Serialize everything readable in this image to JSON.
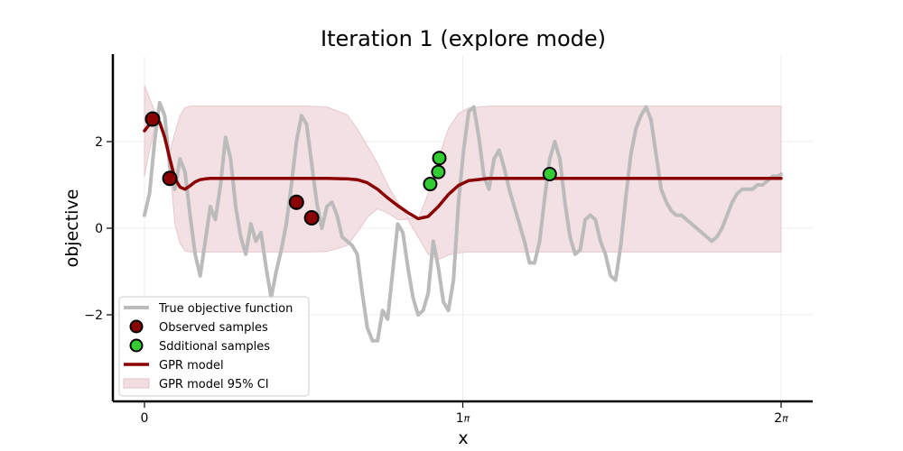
{
  "chart_data": {
    "type": "line",
    "title": "Iteration 1 (explore mode)",
    "xlabel": "x",
    "ylabel": "objective",
    "xlim": [
      -0.1,
      6.6
    ],
    "ylim": [
      -4.0,
      4.0
    ],
    "x_ticks": [
      {
        "value": 0,
        "label": "0",
        "pi": ""
      },
      {
        "value": 3.14159,
        "label": "1",
        "pi": "π"
      },
      {
        "value": 6.28319,
        "label": "2",
        "pi": "π"
      }
    ],
    "y_ticks": [
      {
        "value": 2,
        "label": "2"
      },
      {
        "value": 0,
        "label": "0"
      },
      {
        "value": -2,
        "label": "−2"
      }
    ],
    "grid": true,
    "legend_position": "lower left",
    "legend": [
      {
        "label": "True objective function",
        "kind": "line",
        "color": "#bbbbbb"
      },
      {
        "label": "Observed samples",
        "kind": "marker",
        "color": "#8b0000"
      },
      {
        "label": "Sdditional samples",
        "kind": "marker",
        "color": "#32cd32"
      },
      {
        "label": "GPR model",
        "kind": "line",
        "color": "#8b0000"
      },
      {
        "label": "GPR model 95% CI",
        "kind": "patch",
        "color": "#f2dde1"
      }
    ],
    "series": [
      {
        "name": "True objective function",
        "color": "#bbbbbb",
        "x": [
          0.0,
          0.05,
          0.1,
          0.15,
          0.2,
          0.25,
          0.3,
          0.35,
          0.4,
          0.45,
          0.5,
          0.55,
          0.6,
          0.65,
          0.7,
          0.75,
          0.8,
          0.85,
          0.9,
          0.95,
          1.0,
          1.05,
          1.1,
          1.15,
          1.2,
          1.25,
          1.3,
          1.35,
          1.4,
          1.45,
          1.5,
          1.55,
          1.6,
          1.65,
          1.7,
          1.75,
          1.8,
          1.85,
          1.9,
          1.95,
          2.0,
          2.05,
          2.1,
          2.15,
          2.2,
          2.25,
          2.3,
          2.35,
          2.4,
          2.45,
          2.5,
          2.55,
          2.6,
          2.65,
          2.7,
          2.75,
          2.8,
          2.85,
          2.9,
          2.95,
          3.0,
          3.05,
          3.1,
          3.15,
          3.2,
          3.25,
          3.3,
          3.35,
          3.4,
          3.45,
          3.5,
          3.55,
          3.6,
          3.65,
          3.7,
          3.75,
          3.8,
          3.85,
          3.9,
          3.95,
          4.0,
          4.05,
          4.1,
          4.15,
          4.2,
          4.25,
          4.3,
          4.35,
          4.4,
          4.45,
          4.5,
          4.55,
          4.6,
          4.65,
          4.7,
          4.75,
          4.8,
          4.85,
          4.9,
          4.95,
          5.0,
          5.05,
          5.1,
          5.15,
          5.2,
          5.25,
          5.3,
          5.35,
          5.4,
          5.45,
          5.5,
          5.55,
          5.6,
          5.65,
          5.7,
          5.75,
          5.8,
          5.85,
          5.9,
          5.95,
          6.0,
          6.05,
          6.1,
          6.15,
          6.2,
          6.25,
          6.283
        ],
        "y": [
          0.3,
          0.8,
          2.0,
          2.9,
          2.6,
          1.4,
          0.9,
          1.6,
          1.3,
          0.3,
          -0.6,
          -1.1,
          -0.3,
          0.5,
          0.2,
          1.0,
          2.1,
          1.6,
          0.5,
          -0.2,
          -0.6,
          0.1,
          -0.3,
          -0.1,
          -0.9,
          -1.6,
          -1.0,
          -0.5,
          0.1,
          1.0,
          2.0,
          2.6,
          2.4,
          1.5,
          0.6,
          0.0,
          0.5,
          0.6,
          0.3,
          -0.2,
          -0.3,
          -0.4,
          -0.6,
          -1.5,
          -2.3,
          -2.6,
          -2.6,
          -1.9,
          -2.1,
          -1.0,
          0.1,
          -0.1,
          -0.9,
          -1.6,
          -2.0,
          -1.9,
          -1.5,
          -0.3,
          -0.9,
          -1.7,
          -1.9,
          -1.2,
          0.6,
          1.8,
          2.7,
          2.8,
          2.1,
          1.2,
          0.9,
          1.6,
          1.8,
          1.4,
          0.9,
          0.5,
          0.1,
          -0.3,
          -0.8,
          -0.8,
          -0.3,
          0.7,
          1.6,
          2.0,
          1.6,
          0.6,
          -0.2,
          -0.6,
          -0.5,
          0.2,
          0.3,
          0.2,
          -0.3,
          -0.6,
          -1.1,
          -1.2,
          -0.4,
          0.7,
          1.7,
          2.3,
          2.6,
          2.8,
          2.5,
          1.7,
          0.9,
          0.6,
          0.4,
          0.3,
          0.3,
          0.2,
          0.1,
          0.0,
          -0.1,
          -0.2,
          -0.3,
          -0.2,
          0.0,
          0.3,
          0.6,
          0.8,
          0.9,
          0.9,
          0.9,
          1.0,
          1.0,
          1.1,
          1.2,
          1.2,
          1.25
        ]
      },
      {
        "name": "GPR model",
        "color": "#8b0000",
        "x": [
          0.0,
          0.05,
          0.1,
          0.15,
          0.2,
          0.25,
          0.3,
          0.35,
          0.4,
          0.45,
          0.5,
          0.55,
          0.6,
          0.65,
          0.7,
          0.8,
          0.9,
          1.0,
          1.2,
          1.4,
          1.6,
          1.8,
          2.0,
          2.1,
          2.2,
          2.3,
          2.4,
          2.5,
          2.6,
          2.7,
          2.8,
          2.9,
          3.0,
          3.1,
          3.2,
          3.4,
          3.6,
          3.8,
          4.0,
          4.5,
          5.0,
          5.5,
          6.0,
          6.283
        ],
        "y": [
          2.25,
          2.4,
          2.5,
          2.45,
          2.1,
          1.6,
          1.15,
          0.95,
          0.9,
          0.98,
          1.07,
          1.12,
          1.14,
          1.15,
          1.15,
          1.15,
          1.15,
          1.15,
          1.15,
          1.15,
          1.15,
          1.15,
          1.14,
          1.12,
          1.05,
          0.9,
          0.7,
          0.52,
          0.36,
          0.22,
          0.27,
          0.5,
          0.78,
          0.99,
          1.1,
          1.15,
          1.15,
          1.15,
          1.15,
          1.15,
          1.15,
          1.15,
          1.15,
          1.15
        ]
      }
    ],
    "confidence_interval": {
      "name": "GPR model 95% CI",
      "color": "#f2dde1",
      "x": [
        0.0,
        0.05,
        0.1,
        0.15,
        0.2,
        0.25,
        0.3,
        0.35,
        0.4,
        0.45,
        0.5,
        0.6,
        0.8,
        1.0,
        1.2,
        1.4,
        1.6,
        1.8,
        2.0,
        2.1,
        2.2,
        2.3,
        2.4,
        2.5,
        2.6,
        2.7,
        2.8,
        2.9,
        3.0,
        3.1,
        3.2,
        3.4,
        3.6,
        3.8,
        4.0,
        4.5,
        5.0,
        5.5,
        6.0,
        6.283
      ],
      "upper": [
        3.3,
        3.0,
        2.7,
        2.45,
        2.2,
        1.75,
        2.2,
        2.6,
        2.78,
        2.82,
        2.82,
        2.82,
        2.82,
        2.82,
        2.82,
        2.82,
        2.82,
        2.8,
        2.62,
        2.3,
        1.9,
        1.5,
        1.0,
        0.6,
        0.25,
        0.2,
        0.8,
        1.6,
        2.3,
        2.65,
        2.78,
        2.82,
        2.82,
        2.82,
        2.82,
        2.82,
        2.82,
        2.82,
        2.82,
        2.82
      ],
      "lower": [
        1.2,
        1.8,
        2.3,
        2.45,
        2.0,
        1.45,
        0.1,
        -0.35,
        -0.52,
        -0.55,
        -0.55,
        -0.55,
        -0.55,
        -0.55,
        -0.55,
        -0.55,
        -0.55,
        -0.54,
        -0.4,
        -0.1,
        0.25,
        0.45,
        0.35,
        0.2,
        0.2,
        -0.2,
        -0.6,
        -0.72,
        -0.62,
        -0.57,
        -0.55,
        -0.55,
        -0.55,
        -0.55,
        -0.55,
        -0.55,
        -0.55,
        -0.55,
        -0.55,
        -0.55
      ]
    },
    "observed_samples": {
      "name": "Observed samples",
      "color": "#8b0000",
      "points": [
        {
          "x": 0.08,
          "y": 2.52
        },
        {
          "x": 0.25,
          "y": 1.15
        },
        {
          "x": 1.5,
          "y": 0.6
        },
        {
          "x": 1.65,
          "y": 0.24
        }
      ]
    },
    "additional_samples": {
      "name": "Sdditional samples",
      "color": "#32cd32",
      "points": [
        {
          "x": 2.82,
          "y": 1.02
        },
        {
          "x": 2.9,
          "y": 1.3
        },
        {
          "x": 2.91,
          "y": 1.62
        },
        {
          "x": 4.0,
          "y": 1.25
        }
      ]
    }
  }
}
